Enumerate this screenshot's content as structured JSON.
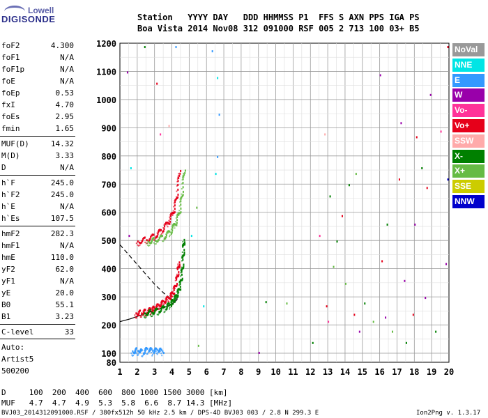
{
  "logo": {
    "line1": "Lowell",
    "line2": "DIGISONDE"
  },
  "header": {
    "line1": "Station   YYYY DAY   DDD HHMMSS P1  FFS S AXN PPS IGA PS",
    "line2": "Boa Vista 2014 Nov08 312 091000 RSF 005 2 713 100 03+ B5"
  },
  "params_group1": [
    {
      "label": "foF2",
      "value": "4.300"
    },
    {
      "label": "foF1",
      "value": "N/A"
    },
    {
      "label": "foF1p",
      "value": "N/A"
    },
    {
      "label": "foE",
      "value": "N/A"
    },
    {
      "label": "foEp",
      "value": "0.53"
    },
    {
      "label": "fxI",
      "value": "4.70"
    },
    {
      "label": "foEs",
      "value": "2.95"
    },
    {
      "label": "fmin",
      "value": "1.65"
    }
  ],
  "params_group2": [
    {
      "label": "MUF(D)",
      "value": "14.32"
    },
    {
      "label": "M(D)",
      "value": "3.33"
    },
    {
      "label": "D",
      "value": "N/A"
    }
  ],
  "params_group3": [
    {
      "label": "h`F",
      "value": "245.0"
    },
    {
      "label": "h`F2",
      "value": "245.0"
    },
    {
      "label": "h`E",
      "value": "N/A"
    },
    {
      "label": "h`Es",
      "value": "107.5"
    }
  ],
  "params_group4": [
    {
      "label": "hmF2",
      "value": "282.3"
    },
    {
      "label": "hmF1",
      "value": "N/A"
    },
    {
      "label": "hmE",
      "value": "110.0"
    },
    {
      "label": "yF2",
      "value": "62.0"
    },
    {
      "label": "yF1",
      "value": "N/A"
    },
    {
      "label": "yE",
      "value": "20.0"
    },
    {
      "label": "B0",
      "value": "55.1"
    },
    {
      "label": "B1",
      "value": "3.23"
    }
  ],
  "clevel": {
    "label": "C-level",
    "value": "33"
  },
  "auto": {
    "line1": "Auto:",
    "line2": "Artist5",
    "line3": "500200"
  },
  "legend": [
    {
      "name": "NoVal",
      "color": "#999999"
    },
    {
      "name": "NNE",
      "color": "#00e5e5"
    },
    {
      "name": "E",
      "color": "#3399ff"
    },
    {
      "name": "W",
      "color": "#9900aa"
    },
    {
      "name": "Vo-",
      "color": "#ff3399"
    },
    {
      "name": "Vo+",
      "color": "#e6001a"
    },
    {
      "name": "SSW",
      "color": "#ffaaaa"
    },
    {
      "name": "X-",
      "color": "#008000"
    },
    {
      "name": "X+",
      "color": "#66bb44"
    },
    {
      "name": "SSE",
      "color": "#cccc00"
    },
    {
      "name": "NNW",
      "color": "#0000cc"
    }
  ],
  "bottom_table": {
    "d_row": "D     100  200  400  600  800 1000 1500 3000 [km]",
    "muf_row": "MUF   4.7  4.7  4.9  5.3  5.8  6.6  8.7 14.3 [MHz]"
  },
  "footer": {
    "left": "BVJ03_2014312091000.RSF / 380fx512h 50 kHz 2.5 km / DPS-4D BVJ03 003 / 2.8 N 299.3 E",
    "right": "Ion2Png v. 1.3.17"
  },
  "chart_data": {
    "type": "scatter",
    "title": "",
    "xlabel": "",
    "ylabel": "",
    "xlim": [
      1,
      20
    ],
    "ylim": [
      80,
      1200
    ],
    "xticks": [
      1,
      2,
      3,
      4,
      5,
      6,
      7,
      8,
      9,
      10,
      11,
      12,
      13,
      14,
      15,
      16,
      17,
      18,
      19,
      20
    ],
    "yticks": [
      80,
      100,
      200,
      300,
      400,
      500,
      600,
      700,
      800,
      900,
      1000,
      1100,
      1200
    ],
    "grid": true,
    "traces": [
      {
        "name": "F2 O-trace",
        "color": "#e6001a",
        "x": [
          1.9,
          2.2,
          2.5,
          2.8,
          3.0,
          3.3,
          3.6,
          3.9,
          4.1,
          4.25,
          4.35,
          4.4
        ],
        "y": [
          245,
          248,
          252,
          258,
          264,
          275,
          290,
          305,
          325,
          360,
          400,
          430
        ]
      },
      {
        "name": "F2 X-trace",
        "color": "#008000",
        "x": [
          2.4,
          2.8,
          3.2,
          3.6,
          3.9,
          4.1,
          4.3,
          4.45,
          4.55,
          4.62,
          4.66,
          4.68
        ],
        "y": [
          245,
          250,
          256,
          266,
          278,
          292,
          312,
          340,
          380,
          430,
          480,
          510
        ]
      },
      {
        "name": "second hop O",
        "color": "#e6001a",
        "x": [
          2.0,
          2.5,
          3.0,
          3.4,
          3.8,
          4.1,
          4.3,
          4.45
        ],
        "y": [
          500,
          508,
          520,
          540,
          570,
          610,
          670,
          770
        ]
      },
      {
        "name": "second hop X",
        "color": "#66bb44",
        "x": [
          2.6,
          3.0,
          3.5,
          3.9,
          4.2,
          4.45,
          4.6,
          4.72
        ],
        "y": [
          500,
          506,
          516,
          535,
          565,
          610,
          680,
          770
        ]
      },
      {
        "name": "Es trace",
        "color": "#3399ff",
        "x": [
          1.7,
          2.0,
          2.3,
          2.6,
          2.9,
          3.2,
          3.5
        ],
        "y": [
          110,
          115,
          108,
          118,
          112,
          115,
          110
        ]
      }
    ],
    "profile_solid": {
      "x": [
        1.0,
        1.6,
        2.2,
        2.8,
        3.3,
        3.8,
        4.1,
        4.3,
        4.3
      ],
      "y": [
        212,
        222,
        235,
        248,
        258,
        268,
        278,
        290,
        300
      ]
    },
    "profile_dashed": {
      "x": [
        1.0,
        1.5,
        2.0,
        2.5,
        3.0,
        3.5,
        3.9
      ],
      "y": [
        485,
        450,
        415,
        380,
        345,
        315,
        295
      ]
    },
    "scatter_points": [
      {
        "x": 5.5,
        "y": 130,
        "c": "#66bb44"
      },
      {
        "x": 5.8,
        "y": 270,
        "c": "#00e5e5"
      },
      {
        "x": 6.3,
        "y": 1175,
        "c": "#3399ff"
      },
      {
        "x": 6.6,
        "y": 1080,
        "c": "#00e5e5"
      },
      {
        "x": 6.7,
        "y": 950,
        "c": "#3399ff"
      },
      {
        "x": 6.5,
        "y": 740,
        "c": "#00e5e5"
      },
      {
        "x": 6.6,
        "y": 800,
        "c": "#3399ff"
      },
      {
        "x": 9.0,
        "y": 105,
        "c": "#9900aa"
      },
      {
        "x": 9.4,
        "y": 285,
        "c": "#008000"
      },
      {
        "x": 10.6,
        "y": 280,
        "c": "#66bb44"
      },
      {
        "x": 12.1,
        "y": 140,
        "c": "#008000"
      },
      {
        "x": 12.5,
        "y": 520,
        "c": "#ff3399"
      },
      {
        "x": 12.8,
        "y": 880,
        "c": "#ffaaaa"
      },
      {
        "x": 12.9,
        "y": 270,
        "c": "#e6001a"
      },
      {
        "x": 13.0,
        "y": 215,
        "c": "#ff3399"
      },
      {
        "x": 13.1,
        "y": 660,
        "c": "#008000"
      },
      {
        "x": 13.3,
        "y": 410,
        "c": "#66bb44"
      },
      {
        "x": 13.5,
        "y": 500,
        "c": "#008000"
      },
      {
        "x": 13.8,
        "y": 590,
        "c": "#e6001a"
      },
      {
        "x": 14.0,
        "y": 350,
        "c": "#66bb44"
      },
      {
        "x": 14.2,
        "y": 700,
        "c": "#008000"
      },
      {
        "x": 14.5,
        "y": 240,
        "c": "#e6001a"
      },
      {
        "x": 14.6,
        "y": 740,
        "c": "#66bb44"
      },
      {
        "x": 14.8,
        "y": 180,
        "c": "#9900aa"
      },
      {
        "x": 15.1,
        "y": 280,
        "c": "#008000"
      },
      {
        "x": 15.6,
        "y": 215,
        "c": "#66bb44"
      },
      {
        "x": 16.0,
        "y": 1090,
        "c": "#9900aa"
      },
      {
        "x": 16.1,
        "y": 430,
        "c": "#e6001a"
      },
      {
        "x": 16.3,
        "y": 230,
        "c": "#9900aa"
      },
      {
        "x": 16.4,
        "y": 560,
        "c": "#008000"
      },
      {
        "x": 16.7,
        "y": 180,
        "c": "#66bb44"
      },
      {
        "x": 17.1,
        "y": 720,
        "c": "#e6001a"
      },
      {
        "x": 17.2,
        "y": 920,
        "c": "#9900aa"
      },
      {
        "x": 17.4,
        "y": 360,
        "c": "#9900aa"
      },
      {
        "x": 17.5,
        "y": 140,
        "c": "#008000"
      },
      {
        "x": 17.9,
        "y": 240,
        "c": "#e6001a"
      },
      {
        "x": 18.0,
        "y": 560,
        "c": "#9900aa"
      },
      {
        "x": 18.1,
        "y": 870,
        "c": "#e6001a"
      },
      {
        "x": 18.4,
        "y": 760,
        "c": "#008000"
      },
      {
        "x": 18.6,
        "y": 300,
        "c": "#9900aa"
      },
      {
        "x": 18.7,
        "y": 690,
        "c": "#e6001a"
      },
      {
        "x": 18.9,
        "y": 1020,
        "c": "#9900aa"
      },
      {
        "x": 19.2,
        "y": 180,
        "c": "#008000"
      },
      {
        "x": 19.5,
        "y": 890,
        "c": "#ff3399"
      },
      {
        "x": 19.8,
        "y": 420,
        "c": "#9900aa"
      },
      {
        "x": 19.9,
        "y": 720,
        "c": "#0000cc"
      },
      {
        "x": 19.9,
        "y": 1190,
        "c": "#e6001a"
      },
      {
        "x": 1.4,
        "y": 1100,
        "c": "#9900aa"
      },
      {
        "x": 1.5,
        "y": 520,
        "c": "#9900aa"
      },
      {
        "x": 1.6,
        "y": 760,
        "c": "#00e5e5"
      },
      {
        "x": 2.4,
        "y": 1190,
        "c": "#008000"
      },
      {
        "x": 3.1,
        "y": 1060,
        "c": "#e6001a"
      },
      {
        "x": 3.3,
        "y": 880,
        "c": "#ff3399"
      },
      {
        "x": 3.8,
        "y": 910,
        "c": "#ffaaaa"
      },
      {
        "x": 4.2,
        "y": 1190,
        "c": "#3399ff"
      },
      {
        "x": 5.4,
        "y": 620,
        "c": "#66bb44"
      },
      {
        "x": 5.1,
        "y": 520,
        "c": "#00e5e5"
      }
    ]
  }
}
